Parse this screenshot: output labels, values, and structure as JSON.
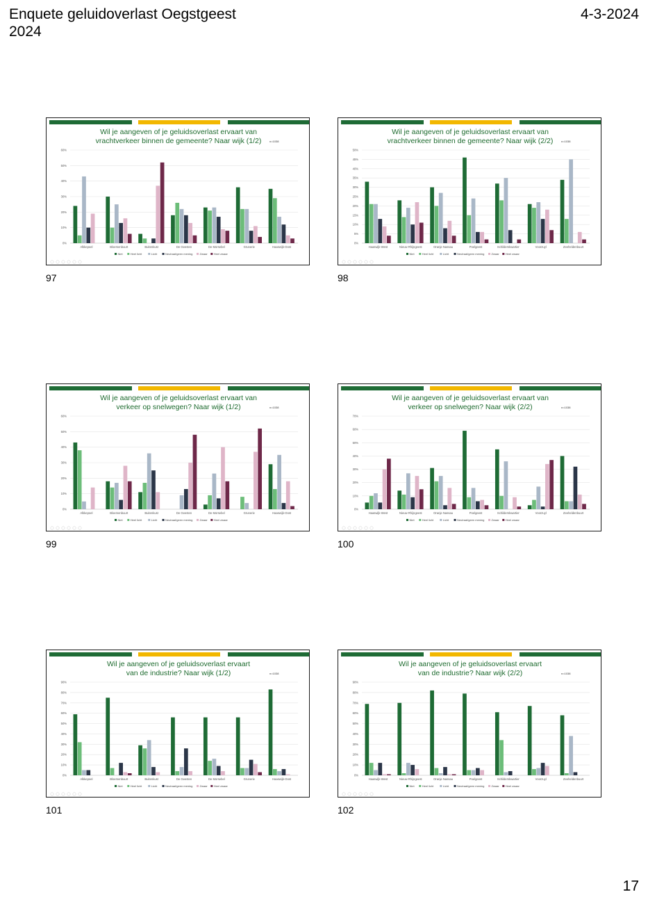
{
  "header": {
    "title": "Enquete geluidoverlast Oegstgeest\n2024",
    "date": "4-3-2024"
  },
  "page_number": "17",
  "colors": {
    "Niet": "#1e6b35",
    "Heel licht": "#6cbd79",
    "Licht": "#a9b7c7",
    "Neutraal/geen mening": "#2b3648",
    "Zwaar": "#dfb5c8",
    "Heel zwaar": "#6e2849"
  },
  "chart_data": [
    {
      "type": "bar",
      "slide_number": "97",
      "n": "n=1038",
      "title": "Wil je aangeven of je geluidsoverlast ervaart van\nvrachtverkeer binnen de gemeente? Naar wijk (1/2)",
      "yticks": [
        "0%",
        "10%",
        "20%",
        "30%",
        "40%",
        "50%",
        "60%"
      ],
      "ylim": [
        0,
        60
      ],
      "categories": [
        "Alkkepoel",
        "Bloemenbuurt",
        "Buitenkust",
        "De Geesten",
        "De Morsebel",
        "Grunerie",
        "Haaswijk-Oost"
      ],
      "series": [
        {
          "name": "Niet",
          "values": [
            24,
            30,
            6,
            18,
            23,
            36,
            35
          ]
        },
        {
          "name": "Heel licht",
          "values": [
            5,
            10,
            3,
            26,
            21,
            22,
            29
          ]
        },
        {
          "name": "Licht",
          "values": [
            43,
            25,
            0,
            22,
            23,
            22,
            17
          ]
        },
        {
          "name": "Neutraal/geen mening",
          "values": [
            10,
            13,
            3,
            18,
            17,
            8,
            12
          ]
        },
        {
          "name": "Zwaar",
          "values": [
            19,
            16,
            37,
            13,
            9,
            11,
            5
          ]
        },
        {
          "name": "Heel zwaar",
          "values": [
            0,
            6,
            52,
            5,
            8,
            4,
            3
          ]
        }
      ]
    },
    {
      "type": "bar",
      "slide_number": "98",
      "n": "n=1038",
      "title": "Wil je aangeven of je geluidsoverlast ervaart van\nvrachtverkeer binnen de gemeente? Naar wijk (2/2)",
      "yticks": [
        "0%",
        "5%",
        "10%",
        "15%",
        "20%",
        "25%",
        "30%",
        "35%",
        "40%",
        "45%",
        "50%"
      ],
      "ylim": [
        0,
        50
      ],
      "categories": [
        "Haaswijk-West",
        "Nieuw Rhijngeest",
        "Oranje Nassau",
        "Poelgeest",
        "Schilderskwartier",
        "Voorzuyl",
        "Zeeheldenbuurt"
      ],
      "series": [
        {
          "name": "Niet",
          "values": [
            33,
            23,
            30,
            46,
            32,
            21,
            34
          ]
        },
        {
          "name": "Heel licht",
          "values": [
            21,
            14,
            20,
            15,
            23,
            19,
            13
          ]
        },
        {
          "name": "Licht",
          "values": [
            21,
            19,
            27,
            24,
            35,
            22,
            45
          ]
        },
        {
          "name": "Neutraal/geen mening",
          "values": [
            13,
            10,
            8,
            6,
            7,
            13,
            0
          ]
        },
        {
          "name": "Zwaar",
          "values": [
            9,
            22,
            12,
            6,
            0,
            18,
            6
          ]
        },
        {
          "name": "Heel zwaar",
          "values": [
            4,
            11,
            4,
            2,
            2,
            7,
            2
          ]
        }
      ]
    },
    {
      "type": "bar",
      "slide_number": "99",
      "n": "n=1038",
      "title": "Wil je aangeven of je geluidsoverlast ervaart van\nverkeer op snelwegen? Naar wijk (1/2)",
      "yticks": [
        "0%",
        "10%",
        "20%",
        "30%",
        "40%",
        "50%",
        "60%"
      ],
      "ylim": [
        0,
        60
      ],
      "categories": [
        "Alkkepoel",
        "Bloemenbuurt",
        "Buitenkust",
        "De Geesten",
        "De Morsebel",
        "Grunerie",
        "Haaswijk-Oost"
      ],
      "series": [
        {
          "name": "Niet",
          "values": [
            43,
            18,
            11,
            0,
            3,
            0,
            29
          ]
        },
        {
          "name": "Heel licht",
          "values": [
            38,
            14,
            17,
            0,
            9,
            8,
            13
          ]
        },
        {
          "name": "Licht",
          "values": [
            5,
            17,
            36,
            9,
            23,
            4,
            35
          ]
        },
        {
          "name": "Neutraal/geen mening",
          "values": [
            0,
            6,
            25,
            13,
            7,
            0,
            4
          ]
        },
        {
          "name": "Zwaar",
          "values": [
            14,
            28,
            11,
            30,
            40,
            37,
            18
          ]
        },
        {
          "name": "Heel zwaar",
          "values": [
            0,
            18,
            0,
            48,
            18,
            52,
            2
          ]
        }
      ]
    },
    {
      "type": "bar",
      "slide_number": "100",
      "n": "n=1038",
      "title": "Wil je aangeven of je geluidsoverlast ervaart van\nverkeer op snelwegen? Naar wijk (2/2)",
      "yticks": [
        "0%",
        "10%",
        "20%",
        "30%",
        "40%",
        "50%",
        "60%",
        "70%"
      ],
      "ylim": [
        0,
        70
      ],
      "categories": [
        "Haaswijk-West",
        "Nieuw Rhijngeest",
        "Oranje Nassau",
        "Poelgeest",
        "Schilderskwartier",
        "Voorzuyl",
        "Zeeheldenbuurt"
      ],
      "series": [
        {
          "name": "Niet",
          "values": [
            5,
            14,
            31,
            59,
            45,
            3,
            40
          ]
        },
        {
          "name": "Heel licht",
          "values": [
            10,
            11,
            21,
            9,
            10,
            7,
            6
          ]
        },
        {
          "name": "Licht",
          "values": [
            12,
            27,
            25,
            16,
            36,
            17,
            6
          ]
        },
        {
          "name": "Neutraal/geen mening",
          "values": [
            5,
            9,
            3,
            6,
            0,
            2,
            32
          ]
        },
        {
          "name": "Zwaar",
          "values": [
            30,
            25,
            16,
            7,
            9,
            34,
            11
          ]
        },
        {
          "name": "Heel zwaar",
          "values": [
            38,
            15,
            4,
            3,
            2,
            37,
            4
          ]
        }
      ]
    },
    {
      "type": "bar",
      "slide_number": "101",
      "n": "n=1038",
      "title": "Wil je aangeven of je geluidsoverlast ervaart\nvan de industrie? Naar wijk (1/2)",
      "yticks": [
        "0%",
        "10%",
        "20%",
        "30%",
        "40%",
        "50%",
        "60%",
        "70%",
        "80%",
        "90%"
      ],
      "ylim": [
        0,
        90
      ],
      "categories": [
        "Alkkepoel",
        "Bloemenbuurt",
        "Buitenkust",
        "De Geesten",
        "De Morsebel",
        "Grunerie",
        "Haaswijk-Oost"
      ],
      "series": [
        {
          "name": "Niet",
          "values": [
            59,
            75,
            29,
            56,
            56,
            56,
            83
          ]
        },
        {
          "name": "Heel licht",
          "values": [
            32,
            7,
            26,
            4,
            14,
            7,
            6
          ]
        },
        {
          "name": "Licht",
          "values": [
            5,
            0,
            34,
            8,
            16,
            7,
            4
          ]
        },
        {
          "name": "Neutraal/geen mening",
          "values": [
            5,
            12,
            8,
            26,
            9,
            15,
            6
          ]
        },
        {
          "name": "Zwaar",
          "values": [
            0,
            3,
            3,
            4,
            4,
            11,
            1
          ]
        },
        {
          "name": "Heel zwaar",
          "values": [
            0,
            2,
            0,
            0,
            0,
            3,
            0
          ]
        }
      ]
    },
    {
      "type": "bar",
      "slide_number": "102",
      "n": "n=1038",
      "title": "Wil je aangeven of je geluidsoverlast ervaart\nvan de industrie? Naar wijk (2/2)",
      "yticks": [
        "0%",
        "10%",
        "20%",
        "30%",
        "40%",
        "50%",
        "60%",
        "70%",
        "80%",
        "90%"
      ],
      "ylim": [
        0,
        90
      ],
      "categories": [
        "Haaswijk-West",
        "Nieuw Rhijngeest",
        "Oranje Nassau",
        "Poelgeest",
        "Schilderskwartier",
        "Voorzuyl",
        "Zeeheldenbuurt"
      ],
      "series": [
        {
          "name": "Niet",
          "values": [
            69,
            70,
            82,
            79,
            61,
            67,
            58
          ]
        },
        {
          "name": "Heel licht",
          "values": [
            12,
            2,
            7,
            5,
            34,
            6,
            2
          ]
        },
        {
          "name": "Licht",
          "values": [
            5,
            12,
            2,
            5,
            3,
            7,
            38
          ]
        },
        {
          "name": "Neutraal/geen mening",
          "values": [
            12,
            10,
            8,
            7,
            4,
            12,
            3
          ]
        },
        {
          "name": "Zwaar",
          "values": [
            1,
            6,
            1,
            5,
            0,
            9,
            0
          ]
        },
        {
          "name": "Heel zwaar",
          "values": [
            1,
            0,
            1,
            0,
            0,
            0,
            0
          ]
        }
      ]
    }
  ]
}
